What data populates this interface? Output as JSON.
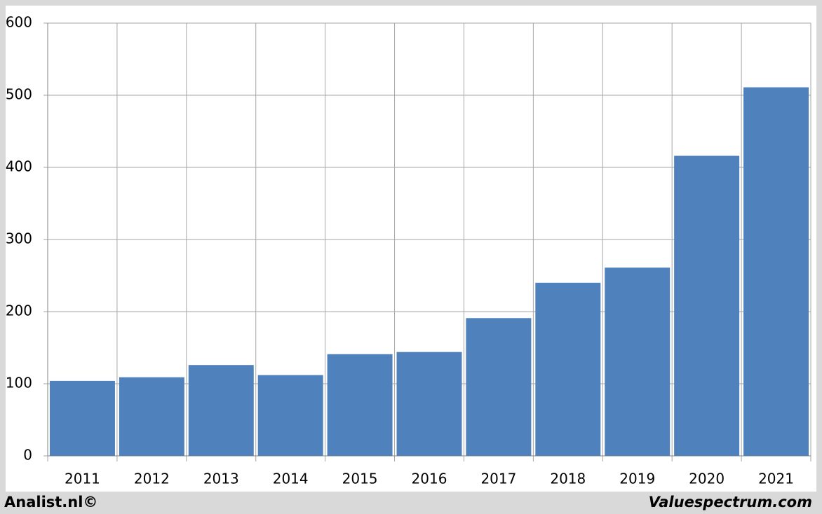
{
  "chart_data": {
    "type": "bar",
    "categories": [
      "2011",
      "2012",
      "2013",
      "2014",
      "2015",
      "2016",
      "2017",
      "2018",
      "2019",
      "2020",
      "2021"
    ],
    "values": [
      104,
      109,
      126,
      112,
      141,
      144,
      191,
      240,
      261,
      416,
      511
    ],
    "color": "#4f81bd",
    "ylim": [
      0,
      600
    ],
    "yticks": [
      0,
      100,
      200,
      300,
      400,
      500,
      600
    ],
    "grid": true,
    "source_left": "Analist.nl©",
    "source_right": "Valuespectrum.com"
  }
}
